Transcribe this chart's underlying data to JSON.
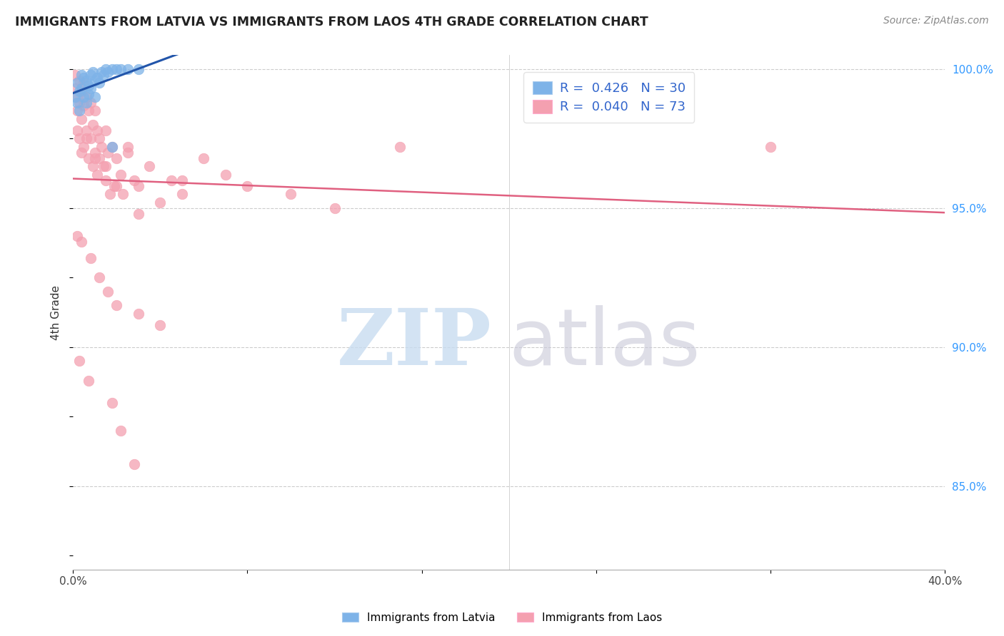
{
  "title": "IMMIGRANTS FROM LATVIA VS IMMIGRANTS FROM LAOS 4TH GRADE CORRELATION CHART",
  "source": "Source: ZipAtlas.com",
  "ylabel": "4th Grade",
  "xlim": [
    0.0,
    0.4
  ],
  "ylim": [
    0.82,
    1.005
  ],
  "xticks": [
    0.0,
    0.08,
    0.16,
    0.24,
    0.32,
    0.4
  ],
  "xtick_labels": [
    "0.0%",
    "",
    "",
    "",
    "",
    "40.0%"
  ],
  "yticks_right": [
    1.0,
    0.95,
    0.9,
    0.85
  ],
  "ytick_labels_right": [
    "100.0%",
    "95.0%",
    "90.0%",
    "85.0%"
  ],
  "color_latvia": "#7EB3E8",
  "color_laos": "#F4A0B0",
  "trendline_color_latvia": "#2255AA",
  "trendline_color_laos": "#E06080",
  "background_color": "#ffffff",
  "latvia_x": [
    0.001,
    0.002,
    0.002,
    0.003,
    0.003,
    0.004,
    0.004,
    0.005,
    0.005,
    0.006,
    0.006,
    0.007,
    0.007,
    0.008,
    0.008,
    0.009,
    0.01,
    0.01,
    0.011,
    0.012,
    0.013,
    0.014,
    0.015,
    0.016,
    0.018,
    0.02,
    0.022,
    0.025,
    0.03,
    0.018
  ],
  "latvia_y": [
    0.99,
    0.995,
    0.988,
    0.992,
    0.985,
    0.998,
    0.993,
    0.997,
    0.99,
    0.996,
    0.988,
    0.994,
    0.991,
    0.998,
    0.993,
    0.999,
    0.996,
    0.99,
    0.997,
    0.995,
    0.999,
    0.998,
    1.0,
    0.999,
    1.0,
    1.0,
    1.0,
    1.0,
    1.0,
    0.972
  ],
  "laos_x": [
    0.001,
    0.001,
    0.002,
    0.002,
    0.002,
    0.003,
    0.003,
    0.003,
    0.004,
    0.004,
    0.004,
    0.005,
    0.005,
    0.005,
    0.006,
    0.006,
    0.007,
    0.007,
    0.008,
    0.008,
    0.009,
    0.009,
    0.01,
    0.01,
    0.011,
    0.011,
    0.012,
    0.012,
    0.013,
    0.014,
    0.015,
    0.015,
    0.016,
    0.017,
    0.018,
    0.019,
    0.02,
    0.022,
    0.023,
    0.025,
    0.028,
    0.03,
    0.035,
    0.04,
    0.045,
    0.05,
    0.06,
    0.07,
    0.08,
    0.1,
    0.12,
    0.15,
    0.006,
    0.01,
    0.015,
    0.02,
    0.025,
    0.03,
    0.05,
    0.32,
    0.002,
    0.004,
    0.008,
    0.012,
    0.016,
    0.02,
    0.03,
    0.04,
    0.003,
    0.007,
    0.018,
    0.022,
    0.028
  ],
  "laos_y": [
    0.998,
    0.993,
    0.99,
    0.985,
    0.978,
    0.996,
    0.988,
    0.975,
    0.992,
    0.982,
    0.97,
    0.995,
    0.987,
    0.972,
    0.99,
    0.978,
    0.985,
    0.968,
    0.988,
    0.975,
    0.98,
    0.965,
    0.985,
    0.97,
    0.978,
    0.962,
    0.975,
    0.968,
    0.972,
    0.965,
    0.978,
    0.96,
    0.97,
    0.955,
    0.972,
    0.958,
    0.968,
    0.962,
    0.955,
    0.972,
    0.96,
    0.958,
    0.965,
    0.952,
    0.96,
    0.955,
    0.968,
    0.962,
    0.958,
    0.955,
    0.95,
    0.972,
    0.975,
    0.968,
    0.965,
    0.958,
    0.97,
    0.948,
    0.96,
    0.972,
    0.94,
    0.938,
    0.932,
    0.925,
    0.92,
    0.915,
    0.912,
    0.908,
    0.895,
    0.888,
    0.88,
    0.87,
    0.858
  ]
}
